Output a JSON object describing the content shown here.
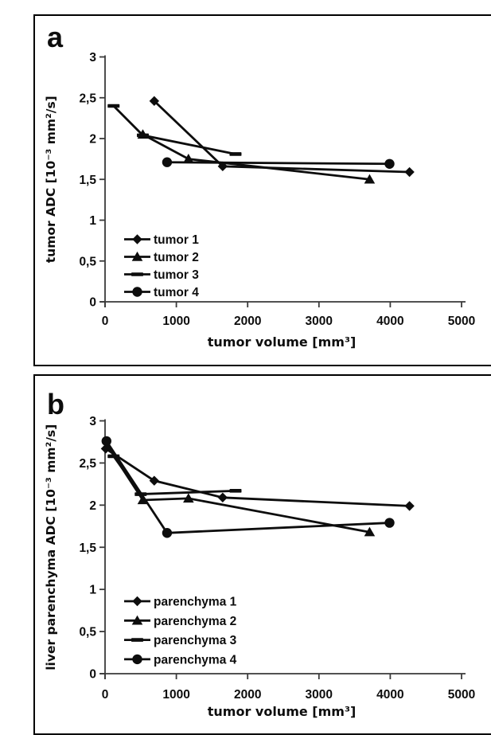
{
  "figure": {
    "description": "Two-panel line chart figure",
    "panels_count": 2
  },
  "style": {
    "series_color": "#0d0d0d",
    "axis_color": "#3a3a3a",
    "background": "#ffffff"
  },
  "chart_data": [
    {
      "type": "line",
      "panel_label": "a",
      "xlabel": "tumor volume [mm³]",
      "ylabel": "tumor ADC [10⁻³ mm²/s]",
      "xlim": [
        0,
        5000
      ],
      "ylim": [
        0,
        3
      ],
      "xticks": {
        "values": [
          0,
          1000,
          2000,
          3000,
          4000,
          5000
        ],
        "labels": [
          "0",
          "1000",
          "2000",
          "3000",
          "4000",
          "5000"
        ]
      },
      "yticks": {
        "values": [
          0,
          0.5,
          1,
          1.5,
          2,
          2.5,
          3
        ],
        "labels": [
          "0",
          "0,5",
          "1",
          "1,5",
          "2",
          "2,5",
          "3"
        ]
      },
      "grid": false,
      "legend": {
        "position": "inside-lower-left",
        "entries": [
          "tumor 1",
          "tumor 2",
          "tumor 3",
          "tumor 4"
        ]
      },
      "series": [
        {
          "name": "tumor 1",
          "marker": "diamond",
          "points": [
            [
              690,
              2.46
            ],
            [
              1650,
              1.66
            ],
            [
              4270,
              1.59
            ]
          ]
        },
        {
          "name": "tumor 2",
          "marker": "triangle",
          "points": [
            [
              530,
              2.05
            ],
            [
              1170,
              1.75
            ],
            [
              3710,
              1.5
            ]
          ]
        },
        {
          "name": "tumor 3",
          "marker": "dash",
          "points": [
            [
              120,
              2.4
            ],
            [
              530,
              2.04
            ],
            [
              1830,
              1.81
            ]
          ]
        },
        {
          "name": "tumor 4",
          "marker": "circle",
          "points": [
            [
              870,
              1.71
            ],
            [
              3990,
              1.69
            ]
          ]
        }
      ]
    },
    {
      "type": "line",
      "panel_label": "b",
      "xlabel": "tumor volume [mm³]",
      "ylabel": "liver parenchyma ADC [10⁻³ mm²/s]",
      "xlim": [
        0,
        5000
      ],
      "ylim": [
        0,
        3
      ],
      "xticks": {
        "values": [
          0,
          1000,
          2000,
          3000,
          4000,
          5000
        ],
        "labels": [
          "0",
          "1000",
          "2000",
          "3000",
          "4000",
          "5000"
        ]
      },
      "yticks": {
        "values": [
          0,
          0.5,
          1,
          1.5,
          2,
          2.5,
          3
        ],
        "labels": [
          "0",
          "0,5",
          "1",
          "1,5",
          "2",
          "2,5",
          "3"
        ]
      },
      "grid": false,
      "legend": {
        "position": "inside-lower-left",
        "entries": [
          "parenchyma 1",
          "parenchyma 2",
          "parenchyma 3",
          "parenchyma 4"
        ]
      },
      "series": [
        {
          "name": "parenchyma 1",
          "marker": "diamond",
          "points": [
            [
              10,
              2.67
            ],
            [
              690,
              2.29
            ],
            [
              1650,
              2.09
            ],
            [
              4270,
              1.99
            ]
          ]
        },
        {
          "name": "parenchyma 2",
          "marker": "triangle",
          "points": [
            [
              30,
              2.71
            ],
            [
              530,
              2.06
            ],
            [
              1170,
              2.08
            ],
            [
              3710,
              1.68
            ]
          ]
        },
        {
          "name": "parenchyma 3",
          "marker": "dash",
          "points": [
            [
              120,
              2.58
            ],
            [
              500,
              2.13
            ],
            [
              1830,
              2.17
            ]
          ]
        },
        {
          "name": "parenchyma 4",
          "marker": "circle",
          "points": [
            [
              20,
              2.76
            ],
            [
              870,
              1.67
            ],
            [
              3990,
              1.79
            ]
          ]
        }
      ]
    }
  ]
}
